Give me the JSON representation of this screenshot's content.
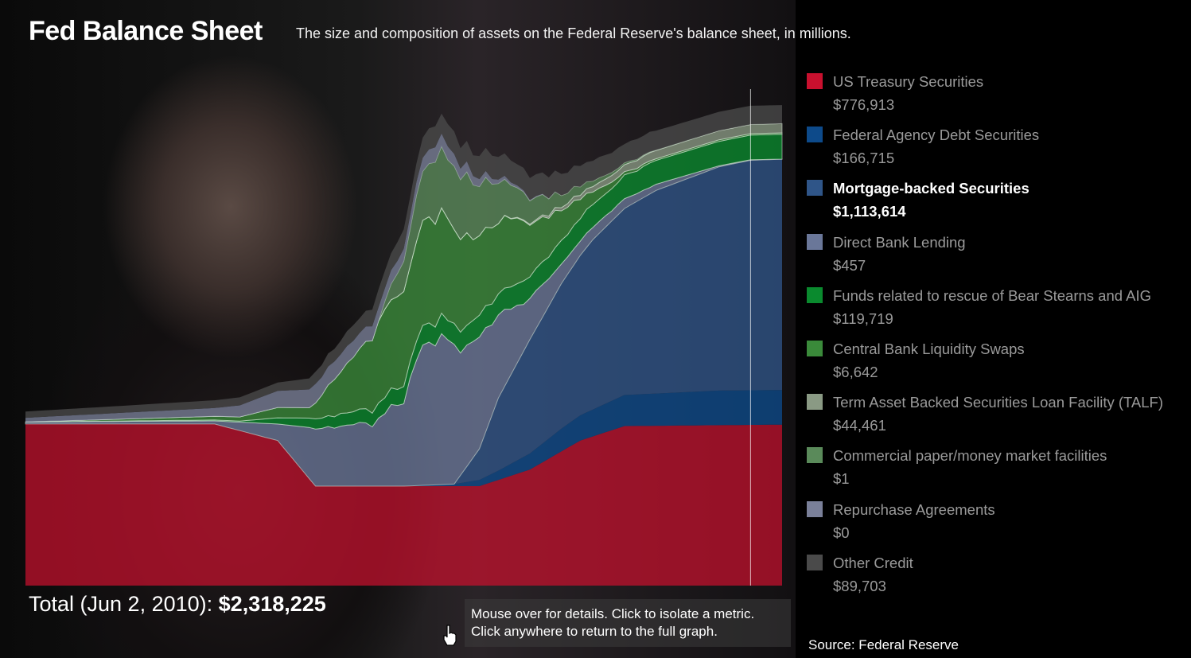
{
  "header": {
    "title": "Fed Balance Sheet",
    "subtitle": "The size and composition of assets on the Federal Reserve's balance sheet, in millions."
  },
  "legend": [
    {
      "name": "US Treasury Securities",
      "value": "$776,913",
      "color": "#c8102e",
      "active": false
    },
    {
      "name": "Federal Agency Debt Securities",
      "value": "$166,715",
      "color": "#0d4a8a",
      "active": false
    },
    {
      "name": "Mortgage-backed Securities",
      "value": "$1,113,614",
      "color": "#2f5588",
      "active": true
    },
    {
      "name": "Direct Bank Lending",
      "value": "$457",
      "color": "#6a7799",
      "active": false
    },
    {
      "name": "Funds related to rescue of Bear Stearns and AIG",
      "value": "$119,719",
      "color": "#0a8a2e",
      "active": false
    },
    {
      "name": "Central Bank Liquidity Swaps",
      "value": "$6,642",
      "color": "#3a8a3a",
      "active": false
    },
    {
      "name": "Term Asset Backed Securities Loan Facility (TALF)",
      "value": "$44,461",
      "color": "#8a9a84",
      "active": false
    },
    {
      "name": "Commercial paper/money market facilities",
      "value": "$1",
      "color": "#5a8a5a",
      "active": false
    },
    {
      "name": "Repurchase Agreements",
      "value": "$0",
      "color": "#7a8099",
      "active": false
    },
    {
      "name": "Other Credit",
      "value": "$89,703",
      "color": "#4a4a4a",
      "active": false
    }
  ],
  "footer": {
    "total_label": "Total (Jun 2, 2010):",
    "total_value": "$2,318,225",
    "hint_line1": "Mouse over for details. Click to isolate a metric.",
    "hint_line2": "Click anywhere to return to the full graph.",
    "source": "Source: Federal Reserve"
  },
  "chart_data": {
    "type": "area",
    "stacked": true,
    "units": "millions of dollars",
    "x_points": 121,
    "marker_index": 115,
    "ylim": [
      0,
      2500000
    ],
    "series": [
      {
        "name": "US Treasury Securities",
        "color": "#c8102e",
        "anchors": [
          [
            0,
            780000
          ],
          [
            30,
            780000
          ],
          [
            40,
            700000
          ],
          [
            46,
            480000
          ],
          [
            60,
            480000
          ],
          [
            72,
            480000
          ],
          [
            80,
            560000
          ],
          [
            88,
            700000
          ],
          [
            95,
            770000
          ],
          [
            120,
            777000
          ]
        ]
      },
      {
        "name": "Federal Agency Debt Securities",
        "color": "#0d4a8a",
        "anchors": [
          [
            0,
            0
          ],
          [
            60,
            0
          ],
          [
            68,
            10000
          ],
          [
            75,
            45000
          ],
          [
            85,
            110000
          ],
          [
            95,
            150000
          ],
          [
            110,
            167000
          ],
          [
            120,
            167000
          ]
        ]
      },
      {
        "name": "Mortgage-backed Securities",
        "color": "#2f5588",
        "anchors": [
          [
            0,
            0
          ],
          [
            68,
            0
          ],
          [
            72,
            150000
          ],
          [
            75,
            350000
          ],
          [
            80,
            550000
          ],
          [
            85,
            700000
          ],
          [
            90,
            820000
          ],
          [
            95,
            900000
          ],
          [
            100,
            980000
          ],
          [
            105,
            1030000
          ],
          [
            110,
            1080000
          ],
          [
            115,
            1110000
          ],
          [
            120,
            1114000
          ]
        ]
      },
      {
        "name": "Direct Bank Lending",
        "color": "#6a7799",
        "anchors": [
          [
            0,
            10000
          ],
          [
            30,
            15000
          ],
          [
            40,
            80000
          ],
          [
            46,
            280000
          ],
          [
            55,
            300000
          ],
          [
            60,
            420000
          ],
          [
            63,
            650000
          ],
          [
            66,
            700000
          ],
          [
            70,
            600000
          ],
          [
            75,
            400000
          ],
          [
            80,
            200000
          ],
          [
            85,
            90000
          ],
          [
            90,
            60000
          ],
          [
            100,
            30000
          ],
          [
            110,
            5000
          ],
          [
            120,
            500
          ]
        ]
      },
      {
        "name": "Funds related to rescue of Bear Stearns and AIG",
        "color": "#0a8a2e",
        "anchors": [
          [
            0,
            0
          ],
          [
            34,
            5000
          ],
          [
            40,
            30000
          ],
          [
            50,
            60000
          ],
          [
            60,
            80000
          ],
          [
            62,
            90000
          ],
          [
            70,
            100000
          ],
          [
            80,
            110000
          ],
          [
            90,
            110000
          ],
          [
            100,
            115000
          ],
          [
            110,
            118000
          ],
          [
            120,
            120000
          ]
        ]
      },
      {
        "name": "Central Bank Liquidity Swaps",
        "color": "#3a8a3a",
        "anchors": [
          [
            0,
            0
          ],
          [
            34,
            20000
          ],
          [
            40,
            50000
          ],
          [
            45,
            50000
          ],
          [
            58,
            450000
          ],
          [
            62,
            500000
          ],
          [
            66,
            480000
          ],
          [
            72,
            400000
          ],
          [
            78,
            300000
          ],
          [
            85,
            150000
          ],
          [
            90,
            60000
          ],
          [
            95,
            15000
          ],
          [
            100,
            8000
          ],
          [
            120,
            6600
          ]
        ]
      },
      {
        "name": "Term Asset Backed Securities Loan Facility (TALF)",
        "color": "#8a9a84",
        "anchors": [
          [
            0,
            0
          ],
          [
            75,
            0
          ],
          [
            80,
            5000
          ],
          [
            85,
            15000
          ],
          [
            90,
            25000
          ],
          [
            95,
            35000
          ],
          [
            100,
            40000
          ],
          [
            110,
            44000
          ],
          [
            120,
            44500
          ]
        ]
      },
      {
        "name": "Commercial paper/money market facilities",
        "color": "#5a8a5a",
        "anchors": [
          [
            0,
            0
          ],
          [
            56,
            0
          ],
          [
            60,
            150000
          ],
          [
            63,
            250000
          ],
          [
            66,
            300000
          ],
          [
            70,
            280000
          ],
          [
            75,
            200000
          ],
          [
            80,
            120000
          ],
          [
            85,
            60000
          ],
          [
            90,
            25000
          ],
          [
            95,
            10000
          ],
          [
            100,
            2000
          ],
          [
            110,
            100
          ],
          [
            120,
            1
          ]
        ]
      },
      {
        "name": "Repurchase Agreements",
        "color": "#7a8099",
        "anchors": [
          [
            0,
            20000
          ],
          [
            30,
            40000
          ],
          [
            40,
            80000
          ],
          [
            46,
            90000
          ],
          [
            55,
            70000
          ],
          [
            60,
            60000
          ],
          [
            65,
            70000
          ],
          [
            70,
            50000
          ],
          [
            75,
            20000
          ],
          [
            80,
            5000
          ],
          [
            85,
            0
          ],
          [
            120,
            0
          ]
        ]
      },
      {
        "name": "Other Credit",
        "color": "#4a4a4a",
        "anchors": [
          [
            0,
            30000
          ],
          [
            40,
            40000
          ],
          [
            55,
            80000
          ],
          [
            65,
            100000
          ],
          [
            75,
            110000
          ],
          [
            85,
            100000
          ],
          [
            95,
            95000
          ],
          [
            105,
            92000
          ],
          [
            120,
            89700
          ]
        ]
      }
    ]
  }
}
